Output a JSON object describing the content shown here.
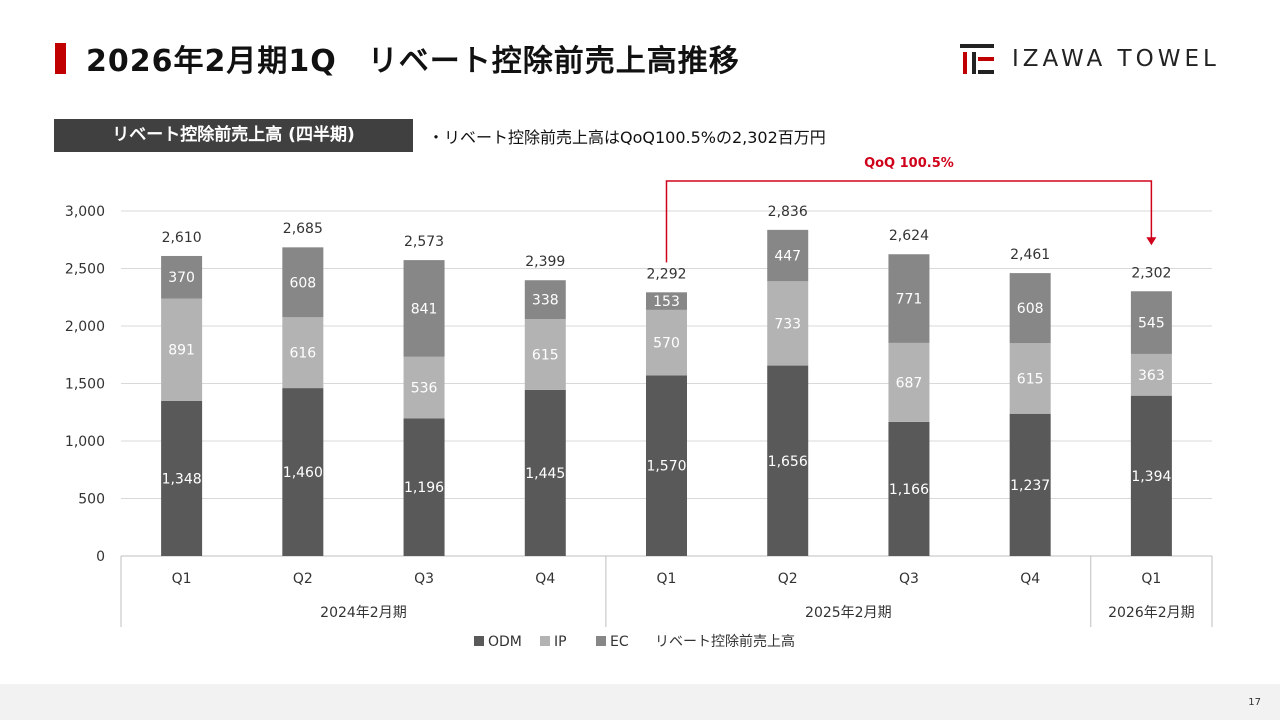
{
  "header": {
    "title": "2026年2月期1Q　リベート控除前売上高推移",
    "logo_text": "IZAWA TOWEL",
    "accent_color": "#c00000"
  },
  "section": {
    "label": "リベート控除前売上高 (四半期)",
    "note": "・リベート控除前売上高はQoQ100.5%の2,302百万円"
  },
  "page_number": "17",
  "chart_data": {
    "type": "bar",
    "stacked": true,
    "categories": [
      "Q1",
      "Q2",
      "Q3",
      "Q4",
      "Q1",
      "Q2",
      "Q3",
      "Q4",
      "Q1"
    ],
    "groups": [
      {
        "label": "2024年2月期",
        "count": 4
      },
      {
        "label": "2025年2月期",
        "count": 4
      },
      {
        "label": "2026年2月期",
        "count": 1
      }
    ],
    "series": [
      {
        "name": "ODM",
        "color": "#595959",
        "values": [
          1348,
          1460,
          1196,
          1445,
          1570,
          1656,
          1166,
          1237,
          1394
        ],
        "labels": [
          "1,348",
          "1,460",
          "1,196",
          "1,445",
          "1,570",
          "1,656",
          "1,166",
          "1,237",
          "1,394"
        ]
      },
      {
        "name": "IP",
        "color": "#b3b3b3",
        "values": [
          891,
          616,
          536,
          615,
          570,
          733,
          687,
          615,
          363
        ],
        "labels": [
          "891",
          "616",
          "536",
          "615",
          "570",
          "733",
          "687",
          "615",
          "363"
        ]
      },
      {
        "name": "EC",
        "color": "#878787",
        "values": [
          370,
          608,
          841,
          338,
          153,
          447,
          771,
          608,
          545
        ],
        "labels": [
          "370",
          "608",
          "841",
          "338",
          "153",
          "447",
          "771",
          "608",
          "545"
        ]
      }
    ],
    "totals_name": "リベート控除前売上高",
    "totals": [
      2610,
      2685,
      2573,
      2399,
      2292,
      2836,
      2624,
      2461,
      2302
    ],
    "total_labels": [
      "2,610",
      "2,685",
      "2,573",
      "2,399",
      "2,292",
      "2,836",
      "2,624",
      "2,461",
      "2,302"
    ],
    "ylim": [
      0,
      3000
    ],
    "yticks": [
      0,
      500,
      1000,
      1500,
      2000,
      2500,
      3000
    ],
    "ytick_labels": [
      "0",
      "500",
      "1,000",
      "1,500",
      "2,000",
      "2,500",
      "3,000"
    ],
    "grid": true,
    "legend_position": "bottom",
    "annotation": {
      "text": "QoQ 100.5%",
      "from_index": 4,
      "to_index": 8,
      "color": "#d0021b"
    }
  }
}
